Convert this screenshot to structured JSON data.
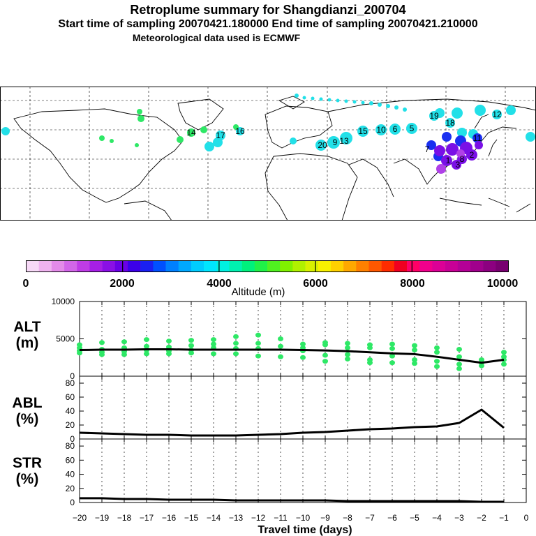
{
  "header": {
    "title": "Retroplume summary for Shangdianzi_200704",
    "sampling": "Start time of sampling 20070421.180000     End time of sampling 20070421.210000",
    "met": "Meteorological data used is ECMWF"
  },
  "colors": {
    "plume_green": "#2ee866",
    "line": "#000000",
    "map_cyan": "#22e0e8"
  },
  "map_labels": [
    "20",
    "9",
    "13",
    "15",
    "10",
    "6",
    "5",
    "16",
    "17",
    "18",
    "19",
    "11",
    "12",
    "8",
    "7",
    "3",
    "2",
    "1",
    "14"
  ],
  "colorbar": {
    "label": "Altitude (m)",
    "ticks": [
      "0",
      "2000",
      "4000",
      "6000",
      "8000",
      "10000"
    ],
    "colors": [
      "#f7d9f7",
      "#efb3ef",
      "#e38be8",
      "#d266e8",
      "#bf3ce6",
      "#a61fe6",
      "#8a10e6",
      "#6a00e6",
      "#3c00e8",
      "#1a20f2",
      "#0050ff",
      "#0080ff",
      "#00a8ff",
      "#00ccff",
      "#00e6ff",
      "#00f0e0",
      "#00f0b0",
      "#00f07c",
      "#20f048",
      "#50f020",
      "#80f000",
      "#b0f000",
      "#d8f000",
      "#f8f000",
      "#ffd000",
      "#ffa800",
      "#ff8000",
      "#ff5800",
      "#ff2c00",
      "#f00020",
      "#ff0066",
      "#f0008c",
      "#dc0096",
      "#c80096",
      "#b40096",
      "#a0008c",
      "#8c0080",
      "#780070"
    ]
  },
  "chart_data": [
    {
      "type": "line",
      "name": "ALT",
      "ylabel": "ALT (m)",
      "ylim": [
        0,
        10000
      ],
      "yticks": [
        "0",
        "5000",
        "10000"
      ],
      "x": [
        -20,
        -19,
        -18,
        -17,
        -16,
        -15,
        -14,
        -13,
        -12,
        -11,
        -10,
        -9,
        -8,
        -7,
        -6,
        -5,
        -4,
        -3,
        -2,
        -1
      ],
      "series": [
        {
          "name": "mean altitude",
          "values": [
            3500,
            3550,
            3550,
            3600,
            3600,
            3550,
            3550,
            3550,
            3550,
            3550,
            3500,
            3450,
            3350,
            3200,
            3050,
            2950,
            2600,
            2200,
            1800,
            2200
          ]
        }
      ],
      "scatter": [
        {
          "x": -20,
          "y": [
            4200,
            3800,
            3400,
            3100
          ]
        },
        {
          "x": -19,
          "y": [
            4500,
            3600,
            3200,
            2900
          ]
        },
        {
          "x": -18,
          "y": [
            4600,
            3800,
            3300,
            2900
          ]
        },
        {
          "x": -17,
          "y": [
            4900,
            4000,
            3500,
            3000
          ]
        },
        {
          "x": -16,
          "y": [
            4700,
            3900,
            3400,
            3000
          ]
        },
        {
          "x": -15,
          "y": [
            4800,
            4100,
            3500,
            3100
          ]
        },
        {
          "x": -14,
          "y": [
            4900,
            4300,
            3800,
            3000
          ]
        },
        {
          "x": -13,
          "y": [
            5300,
            4400,
            3700,
            3000
          ]
        },
        {
          "x": -12,
          "y": [
            5500,
            4400,
            3700,
            2700
          ]
        },
        {
          "x": -11,
          "y": [
            5000,
            4000,
            2600
          ]
        },
        {
          "x": -10,
          "y": [
            4300,
            3800,
            3400,
            2500
          ]
        },
        {
          "x": -9,
          "y": [
            4500,
            4200,
            2800,
            2000
          ]
        },
        {
          "x": -8,
          "y": [
            4400,
            3800,
            2900,
            2300
          ]
        },
        {
          "x": -7,
          "y": [
            4200,
            3800,
            2200,
            1800
          ]
        },
        {
          "x": -6,
          "y": [
            4300,
            3700,
            2700,
            1800
          ]
        },
        {
          "x": -5,
          "y": [
            4100,
            3500,
            2200,
            1700
          ]
        },
        {
          "x": -4,
          "y": [
            3800,
            3200,
            2000,
            1300
          ]
        },
        {
          "x": -3,
          "y": [
            3600,
            2600,
            1600,
            1000
          ]
        },
        {
          "x": -2,
          "y": [
            2200,
            1800,
            1400
          ]
        },
        {
          "x": -1,
          "y": [
            3200,
            2600,
            2200,
            1600
          ]
        }
      ]
    },
    {
      "type": "line",
      "name": "ABL",
      "ylabel": "ABL (%)",
      "ylim": [
        0,
        90
      ],
      "yticks": [
        "0",
        "20",
        "40",
        "60",
        "80"
      ],
      "x": [
        -20,
        -19,
        -18,
        -17,
        -16,
        -15,
        -14,
        -13,
        -12,
        -11,
        -10,
        -9,
        -8,
        -7,
        -6,
        -5,
        -4,
        -3,
        -2,
        -1
      ],
      "series": [
        {
          "name": "ABL fraction",
          "values": [
            9,
            8,
            7,
            6,
            6,
            5,
            5,
            5,
            6,
            7,
            9,
            10,
            12,
            14,
            15,
            17,
            18,
            23,
            42,
            16
          ]
        }
      ]
    },
    {
      "type": "line",
      "name": "STR",
      "ylabel": "STR (%)",
      "ylim": [
        0,
        90
      ],
      "yticks": [
        "0",
        "20",
        "40",
        "60",
        "80"
      ],
      "xlabel": "Travel time (days)",
      "xticks": [
        "-20",
        "-19",
        "-18",
        "-17",
        "-16",
        "-15",
        "-14",
        "-13",
        "-12",
        "-11",
        "-10",
        "-9",
        "-8",
        "-7",
        "-6",
        "-5",
        "-4",
        "-3",
        "-2",
        "-1",
        "0"
      ],
      "x": [
        -20,
        -19,
        -18,
        -17,
        -16,
        -15,
        -14,
        -13,
        -12,
        -11,
        -10,
        -9,
        -8,
        -7,
        -6,
        -5,
        -4,
        -3,
        -2,
        -1
      ],
      "series": [
        {
          "name": "stratosphere fraction",
          "values": [
            6,
            6,
            5,
            5,
            4,
            4,
            4,
            3,
            3,
            3,
            3,
            3,
            2,
            2,
            2,
            2,
            2,
            2,
            1,
            1
          ]
        }
      ]
    }
  ]
}
